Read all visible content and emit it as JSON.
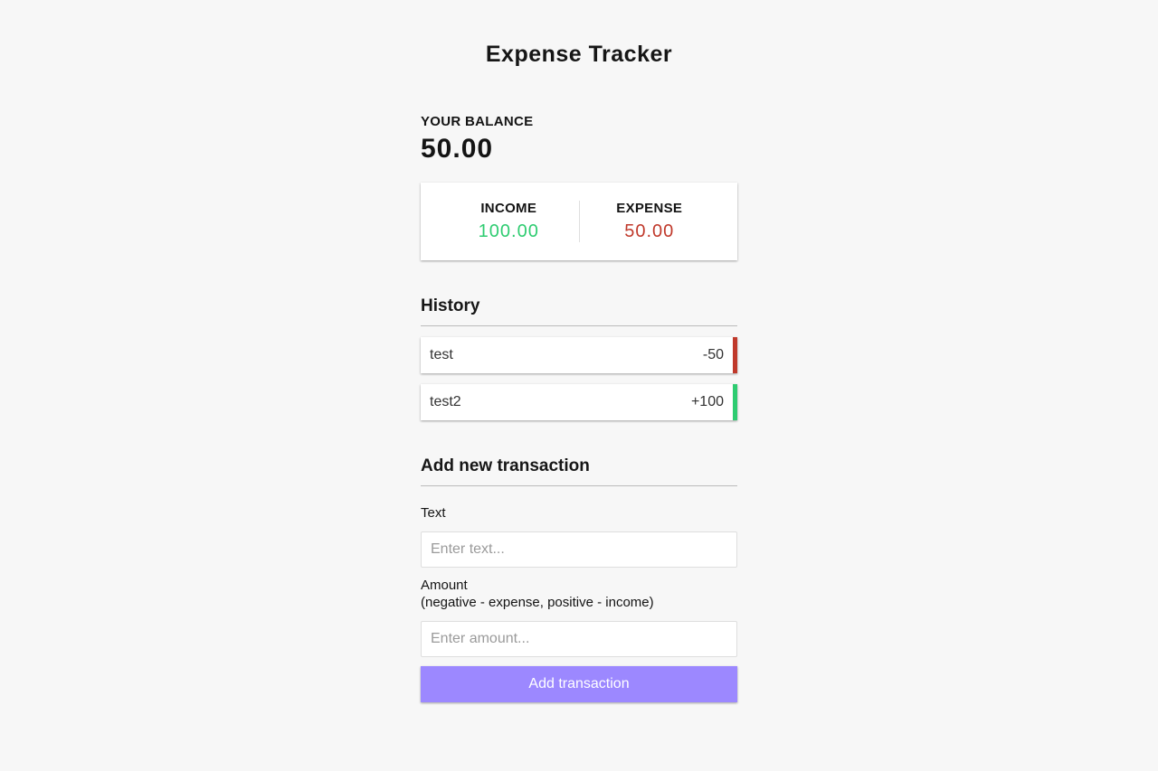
{
  "app": {
    "title": "Expense Tracker"
  },
  "balance": {
    "label": "YOUR BALANCE",
    "value": "50.00"
  },
  "summary": {
    "income": {
      "label": "INCOME",
      "value": "100.00"
    },
    "expense": {
      "label": "EXPENSE",
      "value": "50.00"
    }
  },
  "history": {
    "title": "History",
    "items": [
      {
        "text": "test",
        "amount": "-50",
        "type": "minus"
      },
      {
        "text": "test2",
        "amount": "+100",
        "type": "plus"
      }
    ]
  },
  "form": {
    "title": "Add new transaction",
    "text_label": "Text",
    "text_placeholder": "Enter text...",
    "amount_label": "Amount",
    "amount_hint": "(negative - expense, positive - income)",
    "amount_placeholder": "Enter amount...",
    "submit_label": "Add transaction"
  },
  "colors": {
    "income": "#2ecc71",
    "expense": "#c0392b",
    "accent": "#9c88ff",
    "background": "#f7f7f7"
  }
}
